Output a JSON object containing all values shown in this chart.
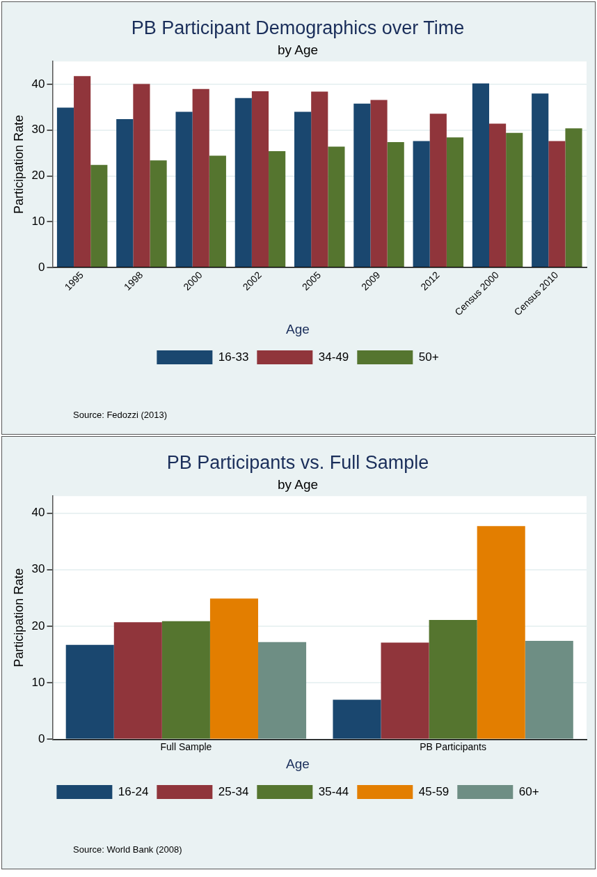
{
  "chart_data": [
    {
      "type": "bar",
      "title": "PB Participant Demographics over Time",
      "subtitle": "by Age",
      "ylabel": "Participation Rate",
      "legend_title": "Age",
      "annotations": [
        "Source: Fedozzi (2013)"
      ],
      "categories": [
        "1995",
        "1998",
        "2000",
        "2002",
        "2005",
        "2009",
        "2012",
        "Census 2000",
        "Census 2010"
      ],
      "series": [
        {
          "name": "16-33",
          "color": "#1a476f",
          "values": [
            34.9,
            32.4,
            34.0,
            37.0,
            34.0,
            35.8,
            27.6,
            40.2,
            38.0
          ]
        },
        {
          "name": "34-49",
          "color": "#90353b",
          "values": [
            41.8,
            40.1,
            39.0,
            38.5,
            38.4,
            36.6,
            33.6,
            31.4,
            27.6
          ]
        },
        {
          "name": "50+",
          "color": "#55752f",
          "values": [
            22.4,
            23.4,
            24.4,
            25.4,
            26.4,
            27.4,
            28.4,
            29.4,
            30.4
          ]
        }
      ],
      "ylim": [
        0,
        45
      ],
      "yticks": [
        0,
        10,
        20,
        30,
        40
      ],
      "grid": "y",
      "legend": "bottom"
    },
    {
      "type": "bar",
      "title": "PB Participants vs. Full Sample",
      "subtitle": "by Age",
      "ylabel": "Participation Rate",
      "legend_title": "Age",
      "annotations": [
        "Source: World Bank (2008)"
      ],
      "categories": [
        "Full Sample",
        "PB Participants"
      ],
      "series": [
        {
          "name": "16-24",
          "color": "#1a476f",
          "values": [
            16.7,
            7.0
          ]
        },
        {
          "name": "25-34",
          "color": "#90353b",
          "values": [
            20.7,
            17.1
          ]
        },
        {
          "name": "35-44",
          "color": "#55752f",
          "values": [
            20.9,
            21.1
          ]
        },
        {
          "name": "45-59",
          "color": "#e37e00",
          "values": [
            24.9,
            37.7
          ]
        },
        {
          "name": "60+",
          "color": "#6e8e84",
          "values": [
            17.2,
            17.4
          ]
        }
      ],
      "ylim": [
        0,
        43
      ],
      "yticks": [
        0,
        10,
        20,
        30,
        40
      ],
      "grid": "y",
      "legend": "bottom"
    }
  ]
}
